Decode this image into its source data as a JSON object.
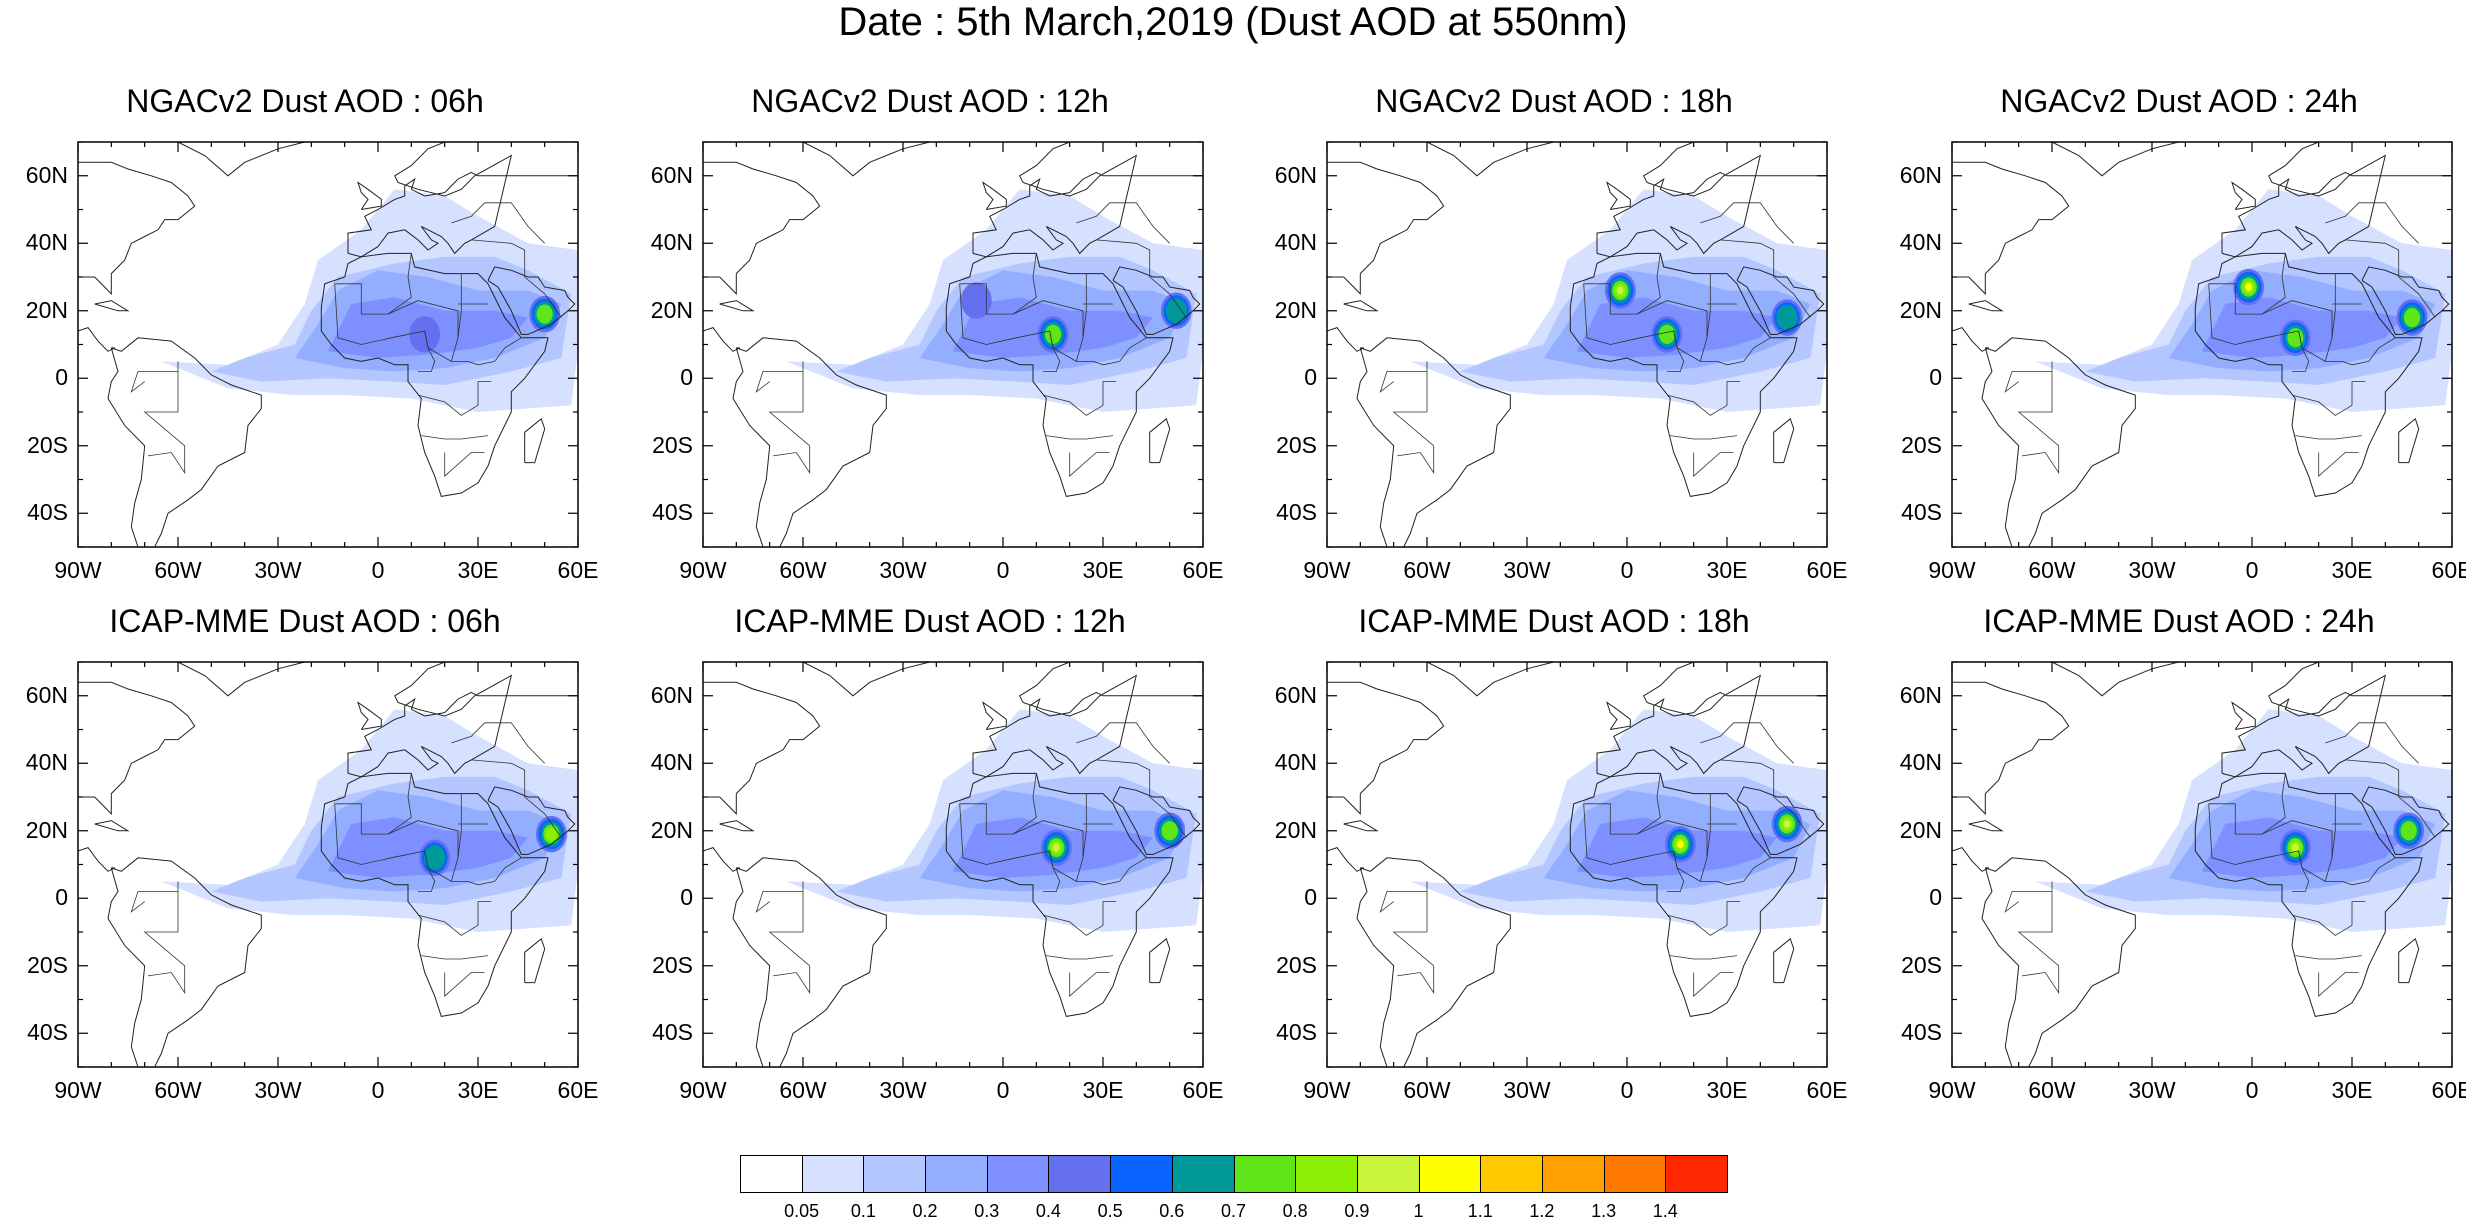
{
  "title": "Date : 5th March,2019 (Dust AOD at 550nm)",
  "panels": [
    {
      "title": "NGACv2 Dust AOD : 06h",
      "model": "NGACv2",
      "hour": "06h",
      "hotspots": [
        [
          -15,
          16,
          0.35
        ],
        [
          14,
          13,
          0.45
        ],
        [
          50,
          19,
          0.75
        ]
      ]
    },
    {
      "title": "NGACv2 Dust AOD : 12h",
      "model": "NGACv2",
      "hour": "12h",
      "hotspots": [
        [
          -8,
          23,
          0.4
        ],
        [
          15,
          13,
          0.75
        ],
        [
          52,
          20,
          0.6
        ]
      ]
    },
    {
      "title": "NGACv2 Dust AOD : 18h",
      "model": "NGACv2",
      "hour": "18h",
      "hotspots": [
        [
          -2,
          26,
          0.95
        ],
        [
          12,
          13,
          0.7
        ],
        [
          48,
          18,
          0.6
        ]
      ]
    },
    {
      "title": "NGACv2 Dust AOD : 24h",
      "model": "NGACv2",
      "hour": "24h",
      "hotspots": [
        [
          -1,
          27,
          1.05
        ],
        [
          13,
          12,
          0.75
        ],
        [
          48,
          18,
          0.7
        ]
      ]
    },
    {
      "title": "ICAP-MME Dust AOD : 06h",
      "model": "ICAP-MME",
      "hour": "06h",
      "hotspots": [
        [
          17,
          12,
          0.65
        ],
        [
          52,
          19,
          0.85
        ]
      ]
    },
    {
      "title": "ICAP-MME Dust AOD : 12h",
      "model": "ICAP-MME",
      "hour": "12h",
      "hotspots": [
        [
          16,
          15,
          0.95
        ],
        [
          50,
          20,
          0.75
        ]
      ]
    },
    {
      "title": "ICAP-MME Dust AOD : 18h",
      "model": "ICAP-MME",
      "hour": "18h",
      "hotspots": [
        [
          16,
          16,
          1.05
        ],
        [
          48,
          22,
          0.95
        ]
      ]
    },
    {
      "title": "ICAP-MME Dust AOD : 24h",
      "model": "ICAP-MME",
      "hour": "24h",
      "hotspots": [
        [
          13,
          15,
          0.95
        ],
        [
          47,
          20,
          0.75
        ]
      ]
    }
  ],
  "axes": {
    "lon_range": [
      -90,
      60
    ],
    "lat_range": [
      -50,
      70
    ],
    "lon_ticks": [
      {
        "v": -90,
        "label": "90W"
      },
      {
        "v": -60,
        "label": "60W"
      },
      {
        "v": -30,
        "label": "30W"
      },
      {
        "v": 0,
        "label": "0"
      },
      {
        "v": 30,
        "label": "30E"
      },
      {
        "v": 60,
        "label": "60E"
      }
    ],
    "lat_ticks": [
      {
        "v": 60,
        "label": "60N"
      },
      {
        "v": 40,
        "label": "40N"
      },
      {
        "v": 20,
        "label": "20N"
      },
      {
        "v": 0,
        "label": "0"
      },
      {
        "v": -20,
        "label": "20S"
      },
      {
        "v": -40,
        "label": "40S"
      }
    ]
  },
  "colorbar": {
    "colors": [
      "#ffffff",
      "#d6e0ff",
      "#b4c6ff",
      "#93aeff",
      "#7e90ff",
      "#6570f0",
      "#0a64ff",
      "#00999a",
      "#5ee61a",
      "#8cf005",
      "#c8f53c",
      "#ffff00",
      "#ffc800",
      "#ffa000",
      "#ff7800",
      "#ff2800"
    ],
    "labels": [
      "0.05",
      "0.1",
      "0.2",
      "0.3",
      "0.4",
      "0.5",
      "0.6",
      "0.7",
      "0.8",
      "0.9",
      "1",
      "1.1",
      "1.2",
      "1.3",
      "1.4"
    ],
    "levels": [
      0.05,
      0.1,
      0.2,
      0.3,
      0.4,
      0.5,
      0.6,
      0.7,
      0.8,
      0.9,
      1.0,
      1.1,
      1.2,
      1.3,
      1.4
    ]
  }
}
